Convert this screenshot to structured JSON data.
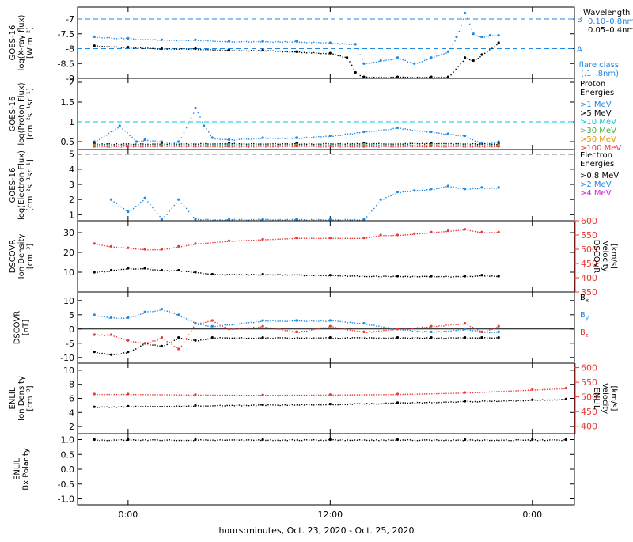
{
  "figure": {
    "xlabel": "hours:minutes, Oct. 23, 2020 - Oct. 25, 2020",
    "x_ticks": [
      "0:00",
      "12:00",
      "0:00"
    ]
  },
  "chart_data": [
    {
      "type": "scatter",
      "panel": "goes-xray",
      "ylabel_lines": [
        "GOES-16",
        "log(X-ray flux)",
        "[W m⁻²]"
      ],
      "yticks": [
        -9.0,
        -8.5,
        -8.0,
        -7.5,
        -7.0
      ],
      "ylim": [
        -9.0,
        -6.6
      ],
      "legend": {
        "title": "Wavelength",
        "entries": [
          {
            "label": "0.10–0.8nm",
            "color": "#1e88e5"
          },
          {
            "label": "0.05–0.4nm",
            "color": "#000000"
          }
        ],
        "footer_lines": [
          "flare class",
          "(.1–.8nm)"
        ],
        "footer_color": "#1e88e5"
      },
      "flare_class_lines": [
        {
          "label": "B",
          "value": -7.0
        },
        {
          "label": "A",
          "value": -8.0
        }
      ],
      "series": [
        {
          "name": "0.10–0.8nm",
          "color": "#1e88e5",
          "x": [
            -2,
            0,
            2,
            4,
            6,
            8,
            10,
            12,
            13.5,
            14,
            15,
            16,
            17,
            18,
            19,
            19.5,
            20,
            20.5,
            21,
            21.5,
            22
          ],
          "y": [
            -7.6,
            -7.65,
            -7.7,
            -7.7,
            -7.75,
            -7.75,
            -7.75,
            -7.8,
            -7.85,
            -8.5,
            -8.4,
            -8.3,
            -8.5,
            -8.3,
            -8.1,
            -7.6,
            -6.8,
            -7.5,
            -7.6,
            -7.55,
            -7.55
          ]
        },
        {
          "name": "0.05–0.4nm",
          "color": "#000000",
          "x": [
            -2,
            0,
            2,
            4,
            6,
            8,
            10,
            12,
            13,
            13.5,
            14,
            16,
            18,
            19,
            20,
            20.5,
            21,
            22
          ],
          "y": [
            -7.9,
            -7.95,
            -8.0,
            -8.0,
            -8.05,
            -8.05,
            -8.1,
            -8.15,
            -8.3,
            -8.8,
            -8.95,
            -8.95,
            -8.95,
            -8.95,
            -8.3,
            -8.4,
            -8.2,
            -7.8
          ]
        }
      ]
    },
    {
      "type": "scatter",
      "panel": "goes-proton",
      "ylabel_lines": [
        "GOES-16",
        "log(Proton Flux)",
        "[cm⁻²s⁻¹sr⁻¹]"
      ],
      "yticks": [
        0.5,
        1.0,
        1.5,
        2.0
      ],
      "ylim": [
        0.3,
        2.1
      ],
      "reference_line": 1.0,
      "reference_color": "#00c8d8",
      "legend": {
        "title_lines": [
          "Proton",
          "Energies"
        ],
        "entries": [
          {
            "label": ">1 MeV",
            "color": "#1e88e5"
          },
          {
            "label": ">5 MeV",
            "color": "#000000"
          },
          {
            "label": ">10 MeV",
            "color": "#00c8d8"
          },
          {
            "label": ">30 MeV",
            "color": "#3cb043"
          },
          {
            "label": ">50 MeV",
            "color": "#e69500"
          },
          {
            "label": ">100 MeV",
            "color": "#e53935"
          }
        ]
      },
      "series": [
        {
          "name": ">1 MeV",
          "color": "#1e88e5",
          "x": [
            -2,
            -0.5,
            0.5,
            1,
            2,
            3,
            4,
            4.5,
            5,
            6,
            8,
            10,
            12,
            14,
            16,
            18,
            19,
            20,
            21,
            22
          ],
          "y": [
            0.5,
            0.9,
            0.5,
            0.55,
            0.5,
            0.5,
            1.35,
            0.9,
            0.6,
            0.55,
            0.6,
            0.6,
            0.65,
            0.75,
            0.85,
            0.75,
            0.7,
            0.65,
            0.45,
            0.5
          ]
        },
        {
          "name": ">5 MeV",
          "color": "#000000",
          "x": [
            -2,
            2,
            6,
            10,
            14,
            18,
            22
          ],
          "y": [
            0.45,
            0.45,
            0.46,
            0.45,
            0.46,
            0.46,
            0.45
          ]
        },
        {
          "name": ">10 MeV",
          "color": "#00c8d8",
          "x": [
            -2,
            2,
            6,
            10,
            14,
            18,
            22
          ],
          "y": [
            0.42,
            0.42,
            0.43,
            0.42,
            0.43,
            0.42,
            0.42
          ]
        },
        {
          "name": ">30 MeV",
          "color": "#3cb043",
          "x": [
            -2,
            2,
            6,
            10,
            14,
            18,
            22
          ],
          "y": [
            0.41,
            0.41,
            0.41,
            0.41,
            0.41,
            0.41,
            0.41
          ]
        },
        {
          "name": ">50 MeV",
          "color": "#e69500",
          "x": [
            -2,
            2,
            6,
            10,
            14,
            18,
            22
          ],
          "y": [
            0.4,
            0.4,
            0.4,
            0.4,
            0.4,
            0.4,
            0.4
          ]
        },
        {
          "name": ">100 MeV",
          "color": "#e53935",
          "x": [
            -2,
            2,
            6,
            10,
            14,
            18,
            22
          ],
          "y": [
            0.38,
            0.39,
            0.38,
            0.39,
            0.38,
            0.39,
            0.38
          ]
        }
      ]
    },
    {
      "type": "scatter",
      "panel": "goes-electron",
      "ylabel_lines": [
        "GOES-16",
        "log(Electron Flux)",
        "[cm⁻²s⁻¹sr⁻¹]"
      ],
      "yticks": [
        1,
        2,
        3,
        4,
        5
      ],
      "ylim": [
        0.6,
        5.3
      ],
      "reference_line": 5.0,
      "reference_color": "#000000",
      "legend": {
        "title_lines": [
          "Electron",
          "Energies"
        ],
        "entries": [
          {
            "label": ">0.8 MeV",
            "color": "#000000"
          },
          {
            "label": ">2 MeV",
            "color": "#1e88e5"
          },
          {
            "label": ">4 MeV",
            "color": "#d81bd8"
          }
        ]
      },
      "series": [
        {
          "name": ">2 MeV",
          "color": "#1e88e5",
          "x": [
            -1,
            0,
            1,
            2,
            3,
            4,
            6,
            8,
            10,
            12,
            14,
            15,
            16,
            17,
            18,
            19,
            20,
            21,
            22
          ],
          "y": [
            2.0,
            1.2,
            2.1,
            0.7,
            2.0,
            0.7,
            0.7,
            0.7,
            0.7,
            0.7,
            0.7,
            2.0,
            2.5,
            2.6,
            2.7,
            2.9,
            2.7,
            2.8,
            2.8
          ]
        }
      ]
    },
    {
      "type": "scatter",
      "panel": "dscovr-plasma",
      "ylabel_lines": [
        "DSCOVR",
        "Ion Density",
        "[cm⁻³]"
      ],
      "right_ylabel_lines": [
        "DSCOVR",
        "Velocity",
        "[km/s]"
      ],
      "yticks": [
        10,
        20,
        30
      ],
      "ylim": [
        0,
        36
      ],
      "right_yticks": [
        350,
        400,
        450,
        500,
        550,
        600
      ],
      "right_ylim": [
        350,
        600
      ],
      "series": [
        {
          "name": "Ion Density",
          "color": "#000000",
          "axis": "left",
          "x": [
            -2,
            -1,
            0,
            1,
            2,
            3,
            4,
            5,
            8,
            12,
            16,
            18,
            20,
            21,
            22
          ],
          "y": [
            10,
            11,
            12,
            12,
            11,
            11,
            10,
            9,
            9,
            8.5,
            8,
            8,
            8,
            8.5,
            8
          ]
        },
        {
          "name": "Velocity",
          "color": "#e53935",
          "axis": "right",
          "x": [
            -2,
            -1,
            0,
            1,
            2,
            3,
            4,
            6,
            8,
            10,
            12,
            14,
            15,
            16,
            17,
            18,
            19,
            20,
            21,
            22
          ],
          "y": [
            520,
            510,
            505,
            500,
            500,
            510,
            520,
            530,
            535,
            540,
            540,
            540,
            550,
            550,
            555,
            560,
            565,
            570,
            560,
            560
          ]
        }
      ]
    },
    {
      "type": "scatter",
      "panel": "dscovr-mag",
      "ylabel_lines": [
        "DSCOVR",
        "[nT]"
      ],
      "yticks": [
        -10,
        -5,
        0,
        5,
        10
      ],
      "ylim": [
        -12,
        13
      ],
      "zero_line": true,
      "legend": {
        "entries": [
          {
            "label": "B",
            "sub": "x",
            "color": "#000000"
          },
          {
            "label": "B",
            "sub": "y",
            "color": "#1e88e5"
          },
          {
            "label": "B",
            "sub": "z",
            "color": "#e53935"
          }
        ]
      },
      "series": [
        {
          "name": "Bx",
          "color": "#000000",
          "x": [
            -2,
            -1,
            0,
            1,
            2,
            3,
            4,
            5,
            8,
            12,
            16,
            18,
            20,
            21,
            22
          ],
          "y": [
            -8,
            -9,
            -8,
            -5,
            -6,
            -3,
            -4,
            -3,
            -3,
            -3,
            -3,
            -3,
            -3,
            -3,
            -3
          ]
        },
        {
          "name": "By",
          "color": "#1e88e5",
          "x": [
            -2,
            -1,
            0,
            1,
            2,
            3,
            4,
            5,
            8,
            10,
            12,
            14,
            16,
            18,
            20,
            21,
            22
          ],
          "y": [
            5,
            4,
            4,
            6,
            7,
            5,
            2,
            1,
            3,
            3,
            3,
            2,
            0,
            -1,
            0,
            -1,
            -1
          ]
        },
        {
          "name": "Bz",
          "color": "#e53935",
          "x": [
            -2,
            -1,
            0,
            1,
            2,
            3,
            4,
            5,
            6,
            8,
            10,
            12,
            14,
            16,
            18,
            20,
            21,
            22
          ],
          "y": [
            -2,
            -2,
            -4,
            -5,
            -3,
            -7,
            2,
            3,
            0,
            1,
            -1,
            1,
            -1,
            0,
            1,
            2,
            -1,
            1
          ]
        }
      ]
    },
    {
      "type": "scatter",
      "panel": "enlil-plasma",
      "ylabel_lines": [
        "ENLIL",
        "Ion Density",
        "[cm⁻³]"
      ],
      "right_ylabel_lines": [
        "ENLIL",
        "Velocity",
        "[km/s]"
      ],
      "yticks": [
        2,
        4,
        6,
        8,
        10
      ],
      "ylim": [
        1,
        11
      ],
      "right_yticks": [
        400,
        450,
        500,
        550,
        600
      ],
      "right_ylim": [
        375,
        615
      ],
      "series": [
        {
          "name": "Ion Density",
          "color": "#000000",
          "axis": "left",
          "x": [
            -2,
            0,
            4,
            8,
            12,
            16,
            20,
            24,
            26
          ],
          "y": [
            4.8,
            4.9,
            5.0,
            5.1,
            5.2,
            5.4,
            5.6,
            5.8,
            5.9
          ]
        },
        {
          "name": "Velocity",
          "color": "#e53935",
          "axis": "right",
          "x": [
            -2,
            0,
            4,
            8,
            12,
            16,
            20,
            24,
            26
          ],
          "y": [
            510,
            510,
            508,
            507,
            508,
            510,
            515,
            525,
            530
          ]
        }
      ]
    },
    {
      "type": "scatter",
      "panel": "enlil-polarity",
      "ylabel_lines": [
        "ENLIL",
        "Bx Polarity"
      ],
      "yticks": [
        -1.0,
        -0.5,
        0.0,
        0.5,
        1.0
      ],
      "ytick_labels": [
        "-1.0",
        "-0.5",
        "0.0",
        "0.5",
        "1.0"
      ],
      "ylim": [
        -1.2,
        1.2
      ],
      "series": [
        {
          "name": "Bx Polarity",
          "color": "#000000",
          "x": [
            -2,
            0,
            4,
            8,
            12,
            16,
            20,
            24,
            26
          ],
          "y": [
            1,
            1,
            1,
            1,
            1,
            1,
            1,
            1,
            1
          ]
        }
      ]
    }
  ]
}
